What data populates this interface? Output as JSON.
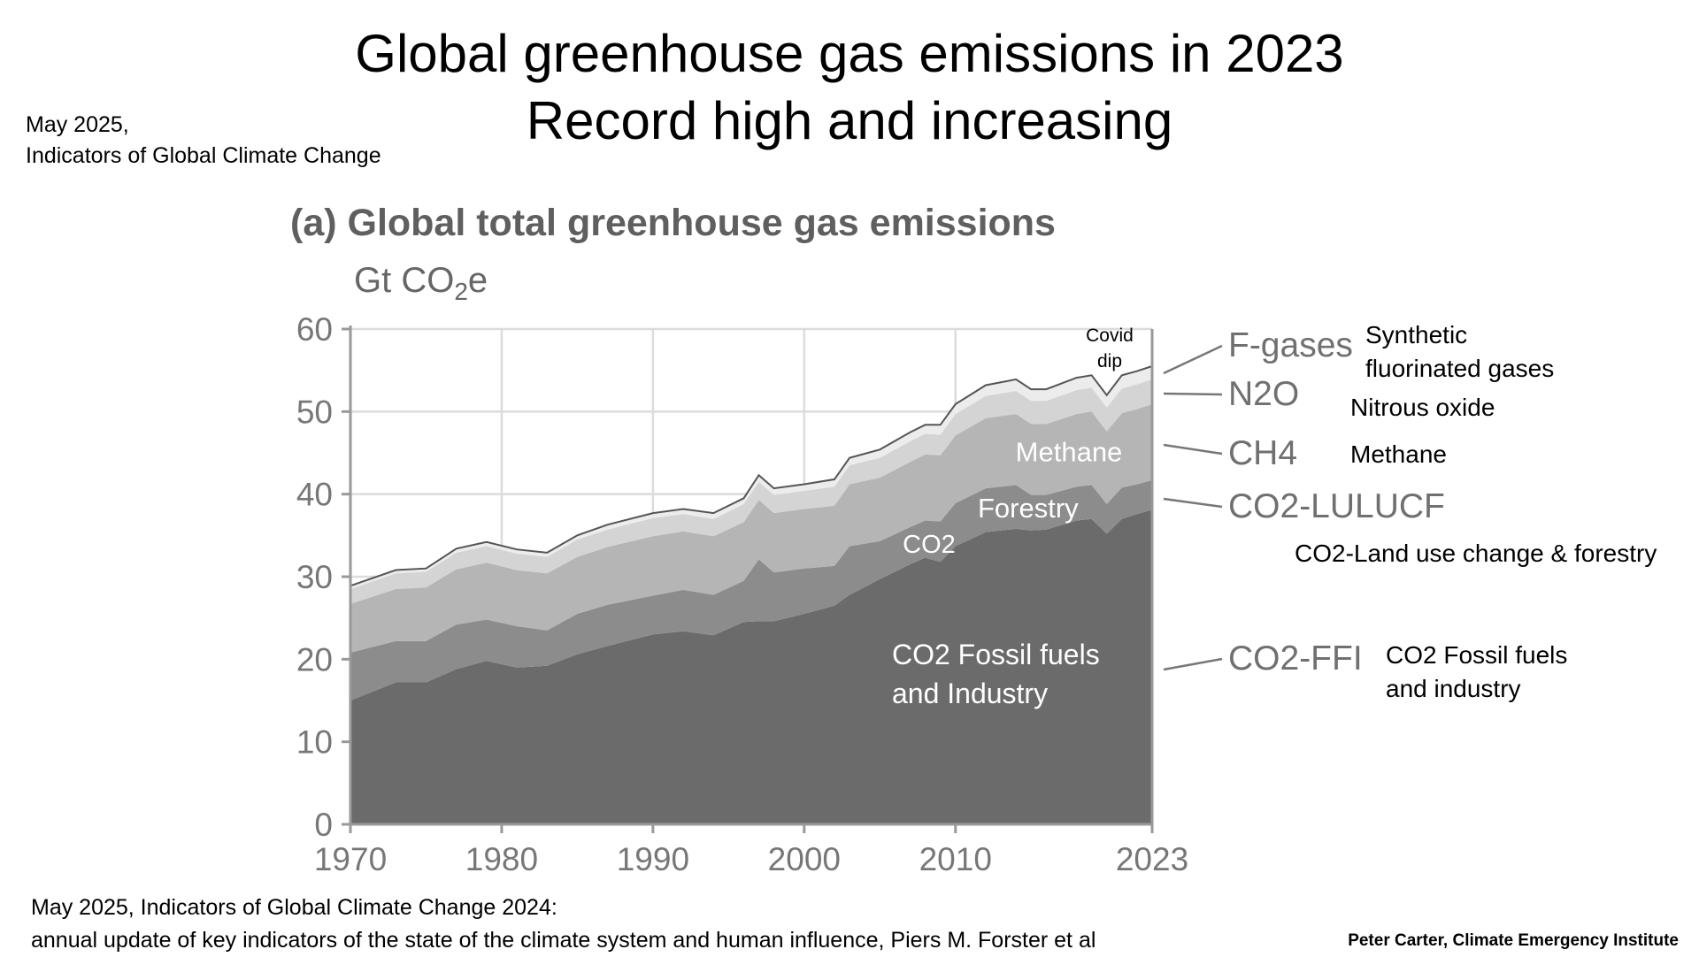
{
  "header": {
    "title_line1": "Global greenhouse gas emissions in 2023",
    "title_line2": "Record high and increasing",
    "note_line1": "May 2025,",
    "note_line2": "Indicators of Global Climate Change"
  },
  "footer": {
    "source_line1": "May 2025, Indicators of Global Climate Change 2024:",
    "source_line2": "annual update of key indicators of the state of the climate system and human influence,  Piers M. Forster et al",
    "credit": "Peter Carter, Climate Emergency Institute"
  },
  "chart_data": {
    "type": "area",
    "stacked": true,
    "title": "(a) Global total greenhouse gas emissions",
    "ylabel_prefix": "Gt CO",
    "ylabel_sub": "2",
    "ylabel_suffix": "e",
    "xlim": [
      1970,
      2023
    ],
    "ylim": [
      0,
      60
    ],
    "grid": true,
    "x_ticks": [
      1970,
      1980,
      1990,
      2000,
      2010,
      2023
    ],
    "y_ticks": [
      0,
      10,
      20,
      30,
      40,
      50,
      60
    ],
    "x": [
      1970,
      1973,
      1975,
      1977,
      1979,
      1981,
      1983,
      1985,
      1987,
      1990,
      1992,
      1994,
      1996,
      1997,
      1998,
      2000,
      2002,
      2003,
      2005,
      2007,
      2008,
      2009,
      2010,
      2012,
      2014,
      2015,
      2016,
      2018,
      2019,
      2020,
      2021,
      2022,
      2023
    ],
    "series": [
      {
        "name": "CO2-FFI",
        "color": "#6b6b6b",
        "values": [
          15.0,
          17.2,
          17.2,
          18.8,
          19.8,
          19.0,
          19.2,
          20.6,
          21.6,
          23.0,
          23.4,
          22.9,
          24.5,
          24.6,
          24.6,
          25.5,
          26.5,
          27.8,
          29.7,
          31.5,
          32.3,
          31.8,
          33.7,
          35.4,
          35.8,
          35.6,
          35.7,
          36.8,
          37.0,
          35.2,
          37.0,
          37.6,
          38.1
        ]
      },
      {
        "name": "CO2-LULUCF",
        "color": "#8c8c8c",
        "values": [
          5.8,
          5.0,
          5.0,
          5.4,
          5.0,
          5.0,
          4.3,
          4.9,
          5.0,
          4.7,
          5.0,
          4.9,
          5.0,
          7.5,
          5.9,
          5.5,
          4.8,
          5.9,
          4.6,
          4.5,
          4.5,
          4.9,
          5.2,
          5.3,
          5.3,
          4.3,
          4.2,
          4.1,
          4.1,
          3.6,
          3.8,
          3.6,
          3.6
        ]
      },
      {
        "name": "CH4",
        "color": "#b5b5b5",
        "values": [
          5.9,
          6.3,
          6.5,
          6.7,
          6.9,
          6.8,
          6.9,
          6.9,
          7.0,
          7.2,
          7.1,
          7.1,
          7.1,
          7.2,
          7.2,
          7.2,
          7.3,
          7.5,
          7.7,
          7.9,
          8.0,
          8.0,
          8.2,
          8.5,
          8.6,
          8.6,
          8.6,
          8.8,
          8.9,
          8.8,
          9.0,
          9.1,
          9.2
        ]
      },
      {
        "name": "N2O",
        "color": "#d4d4d4",
        "values": [
          1.8,
          1.9,
          1.9,
          2.0,
          2.0,
          2.0,
          2.0,
          2.1,
          2.1,
          2.2,
          2.1,
          2.1,
          2.2,
          2.2,
          2.2,
          2.2,
          2.3,
          2.3,
          2.4,
          2.5,
          2.5,
          2.5,
          2.6,
          2.7,
          2.8,
          2.8,
          2.8,
          2.9,
          2.9,
          2.9,
          3.0,
          3.0,
          3.0
        ]
      },
      {
        "name": "F-gases",
        "color": "#ececec",
        "values": [
          0.4,
          0.4,
          0.4,
          0.5,
          0.5,
          0.5,
          0.5,
          0.5,
          0.6,
          0.6,
          0.6,
          0.7,
          0.7,
          0.8,
          0.8,
          0.8,
          0.9,
          0.9,
          1.0,
          1.1,
          1.1,
          1.2,
          1.2,
          1.3,
          1.4,
          1.4,
          1.4,
          1.5,
          1.5,
          1.5,
          1.6,
          1.6,
          1.6
        ]
      }
    ],
    "inner_labels": [
      "Methane",
      "Forestry",
      "CO2",
      "CO2 Fossil fuels\nand Industry"
    ],
    "annotation": "Covid\ndip",
    "legend": [
      {
        "key": "F-gases",
        "desc": "Synthetic\nfluorinated gases"
      },
      {
        "key": "N2O",
        "desc": "Nitrous oxide"
      },
      {
        "key": "CH4",
        "desc": "Methane"
      },
      {
        "key": "CO2-LULUCF",
        "desc": "CO2-Land use change & forestry"
      },
      {
        "key": "CO2-FFI",
        "desc": "CO2 Fossil fuels\nand industry"
      }
    ],
    "legend_placement": "right"
  }
}
